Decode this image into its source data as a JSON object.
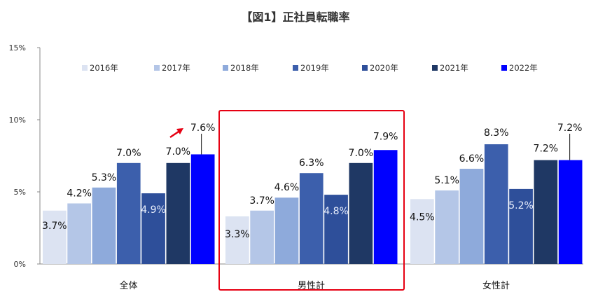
{
  "chart_data": {
    "type": "bar",
    "title": "【図1】正社員転職率",
    "categories": [
      "全体",
      "男性計",
      "女性計"
    ],
    "series": [
      {
        "name": "2016年",
        "color": "#dce3f2",
        "values": [
          3.7,
          3.3,
          4.5
        ],
        "labels": [
          "3.7%",
          "3.3%",
          "4.5%"
        ]
      },
      {
        "name": "2017年",
        "color": "#b4c6e7",
        "values": [
          4.2,
          3.7,
          5.1
        ],
        "labels": [
          "4.2%",
          "3.7%",
          "5.1%"
        ]
      },
      {
        "name": "2018年",
        "color": "#8eaadb",
        "values": [
          5.3,
          4.6,
          6.6
        ],
        "labels": [
          "5.3%",
          "4.6%",
          "6.6%"
        ]
      },
      {
        "name": "2019年",
        "color": "#3c5fac",
        "values": [
          7.0,
          6.3,
          8.3
        ],
        "labels": [
          "7.0%",
          "6.3%",
          "8.3%"
        ]
      },
      {
        "name": "2020年",
        "color": "#2e4f9a",
        "values": [
          4.9,
          4.8,
          5.2
        ],
        "labels": [
          "4.9%",
          "4.8%",
          "5.2%"
        ]
      },
      {
        "name": "2021年",
        "color": "#1f3864",
        "values": [
          7.0,
          7.0,
          7.2
        ],
        "labels": [
          "7.0%",
          "7.0%",
          "7.2%"
        ]
      },
      {
        "name": "2022年",
        "color": "#0000ff",
        "values": [
          7.6,
          7.9,
          7.2
        ],
        "labels": [
          "7.6%",
          "7.9%",
          "7.2%"
        ]
      }
    ],
    "y_ticks": [
      "0%",
      "5%",
      "10%",
      "15%"
    ],
    "ylim": [
      0,
      15
    ],
    "ylabel": "",
    "xlabel": "",
    "legend_position": "top",
    "grid": false,
    "highlight_category": "男性計",
    "highlight_color": "#e60012",
    "arrow_color": "#e60012"
  }
}
